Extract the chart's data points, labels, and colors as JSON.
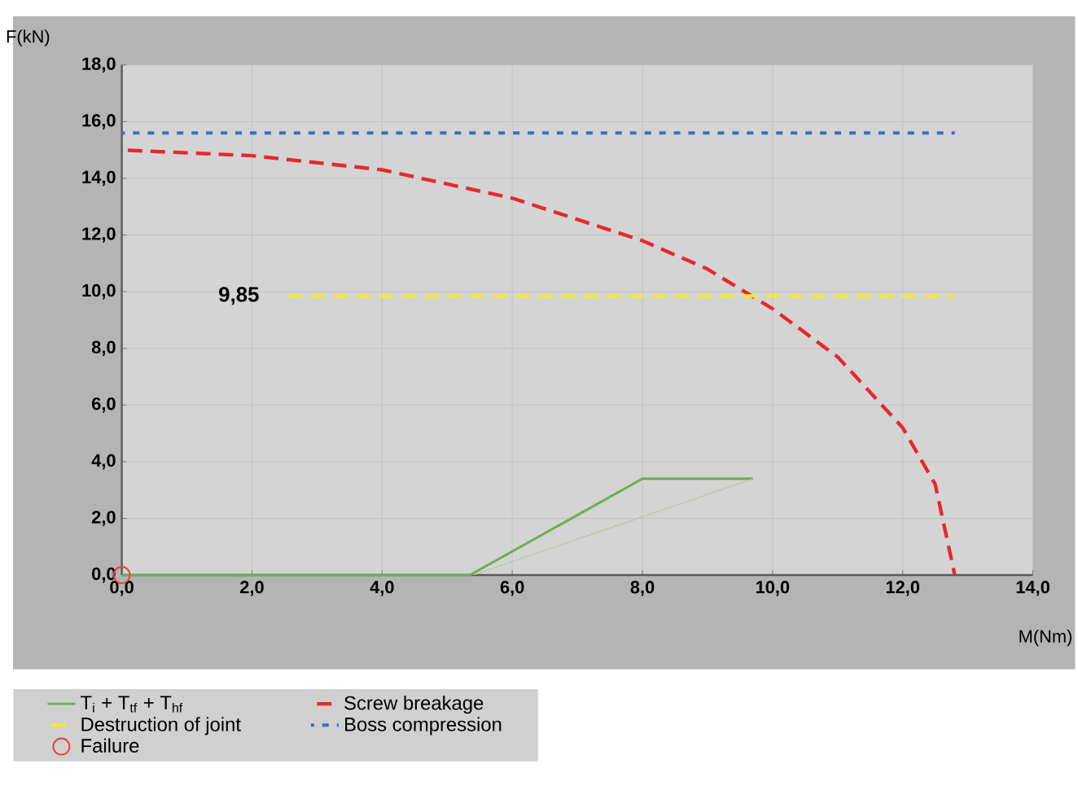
{
  "chart_data": {
    "type": "line",
    "xlabel": "M(Nm)",
    "ylabel": "F(kN)",
    "xlim": [
      0,
      14
    ],
    "ylim": [
      0,
      18
    ],
    "xticks": [
      {
        "value": 0,
        "label": "0,0"
      },
      {
        "value": 2,
        "label": "2,0"
      },
      {
        "value": 4,
        "label": "4,0"
      },
      {
        "value": 6,
        "label": "6,0"
      },
      {
        "value": 8,
        "label": "8,0"
      },
      {
        "value": 10,
        "label": "10,0"
      },
      {
        "value": 12,
        "label": "12,0"
      },
      {
        "value": 14,
        "label": "14,0"
      }
    ],
    "yticks": [
      {
        "value": 0,
        "label": "0,0"
      },
      {
        "value": 2,
        "label": "2,0"
      },
      {
        "value": 4,
        "label": "4,0"
      },
      {
        "value": 6,
        "label": "6,0"
      },
      {
        "value": 8,
        "label": "8,0"
      },
      {
        "value": 10,
        "label": "10,0"
      },
      {
        "value": 12,
        "label": "12,0"
      },
      {
        "value": 14,
        "label": "14,0"
      },
      {
        "value": 16,
        "label": "16,0"
      },
      {
        "value": 18,
        "label": "18,0"
      }
    ],
    "grid": true,
    "legend": "bottom",
    "series": [
      {
        "name": "T$_{i}$ + T$_{tf}$ + T$_{hf}$",
        "color": "#6ab04c",
        "line_style": "solid",
        "x": [
          0,
          5.35,
          8.0,
          9.7
        ],
        "values": [
          0,
          0,
          3.4,
          3.4
        ]
      },
      {
        "name": "Screw breakage",
        "color": "#e8282c",
        "line_style": "dashed",
        "x": [
          0,
          2,
          4,
          6,
          8,
          9,
          10,
          11,
          12,
          12.5,
          12.8
        ],
        "values": [
          15.0,
          14.8,
          14.3,
          13.3,
          11.8,
          10.8,
          9.4,
          7.7,
          5.2,
          3.2,
          0
        ]
      },
      {
        "name": "Destruction of joint",
        "color": "#f2e83a",
        "line_style": "dashed",
        "x": [
          2.5,
          12.8
        ],
        "values": [
          9.85,
          9.85
        ],
        "value_labels": [
          "9,85",
          null
        ]
      },
      {
        "name": "Boss compression",
        "color": "#3a6fc0",
        "line_style": "dotted",
        "x": [
          0,
          12.8
        ],
        "values": [
          15.6,
          15.6
        ]
      },
      {
        "name": "Failure",
        "type": "scatter",
        "marker": "circle",
        "color": "#e8443a",
        "x": [
          0
        ],
        "values": [
          0
        ]
      },
      {
        "color": "#b8c4a8",
        "line_style": "solid",
        "x": [
          5.4,
          9.7
        ],
        "values": [
          0,
          3.4
        ]
      }
    ]
  }
}
